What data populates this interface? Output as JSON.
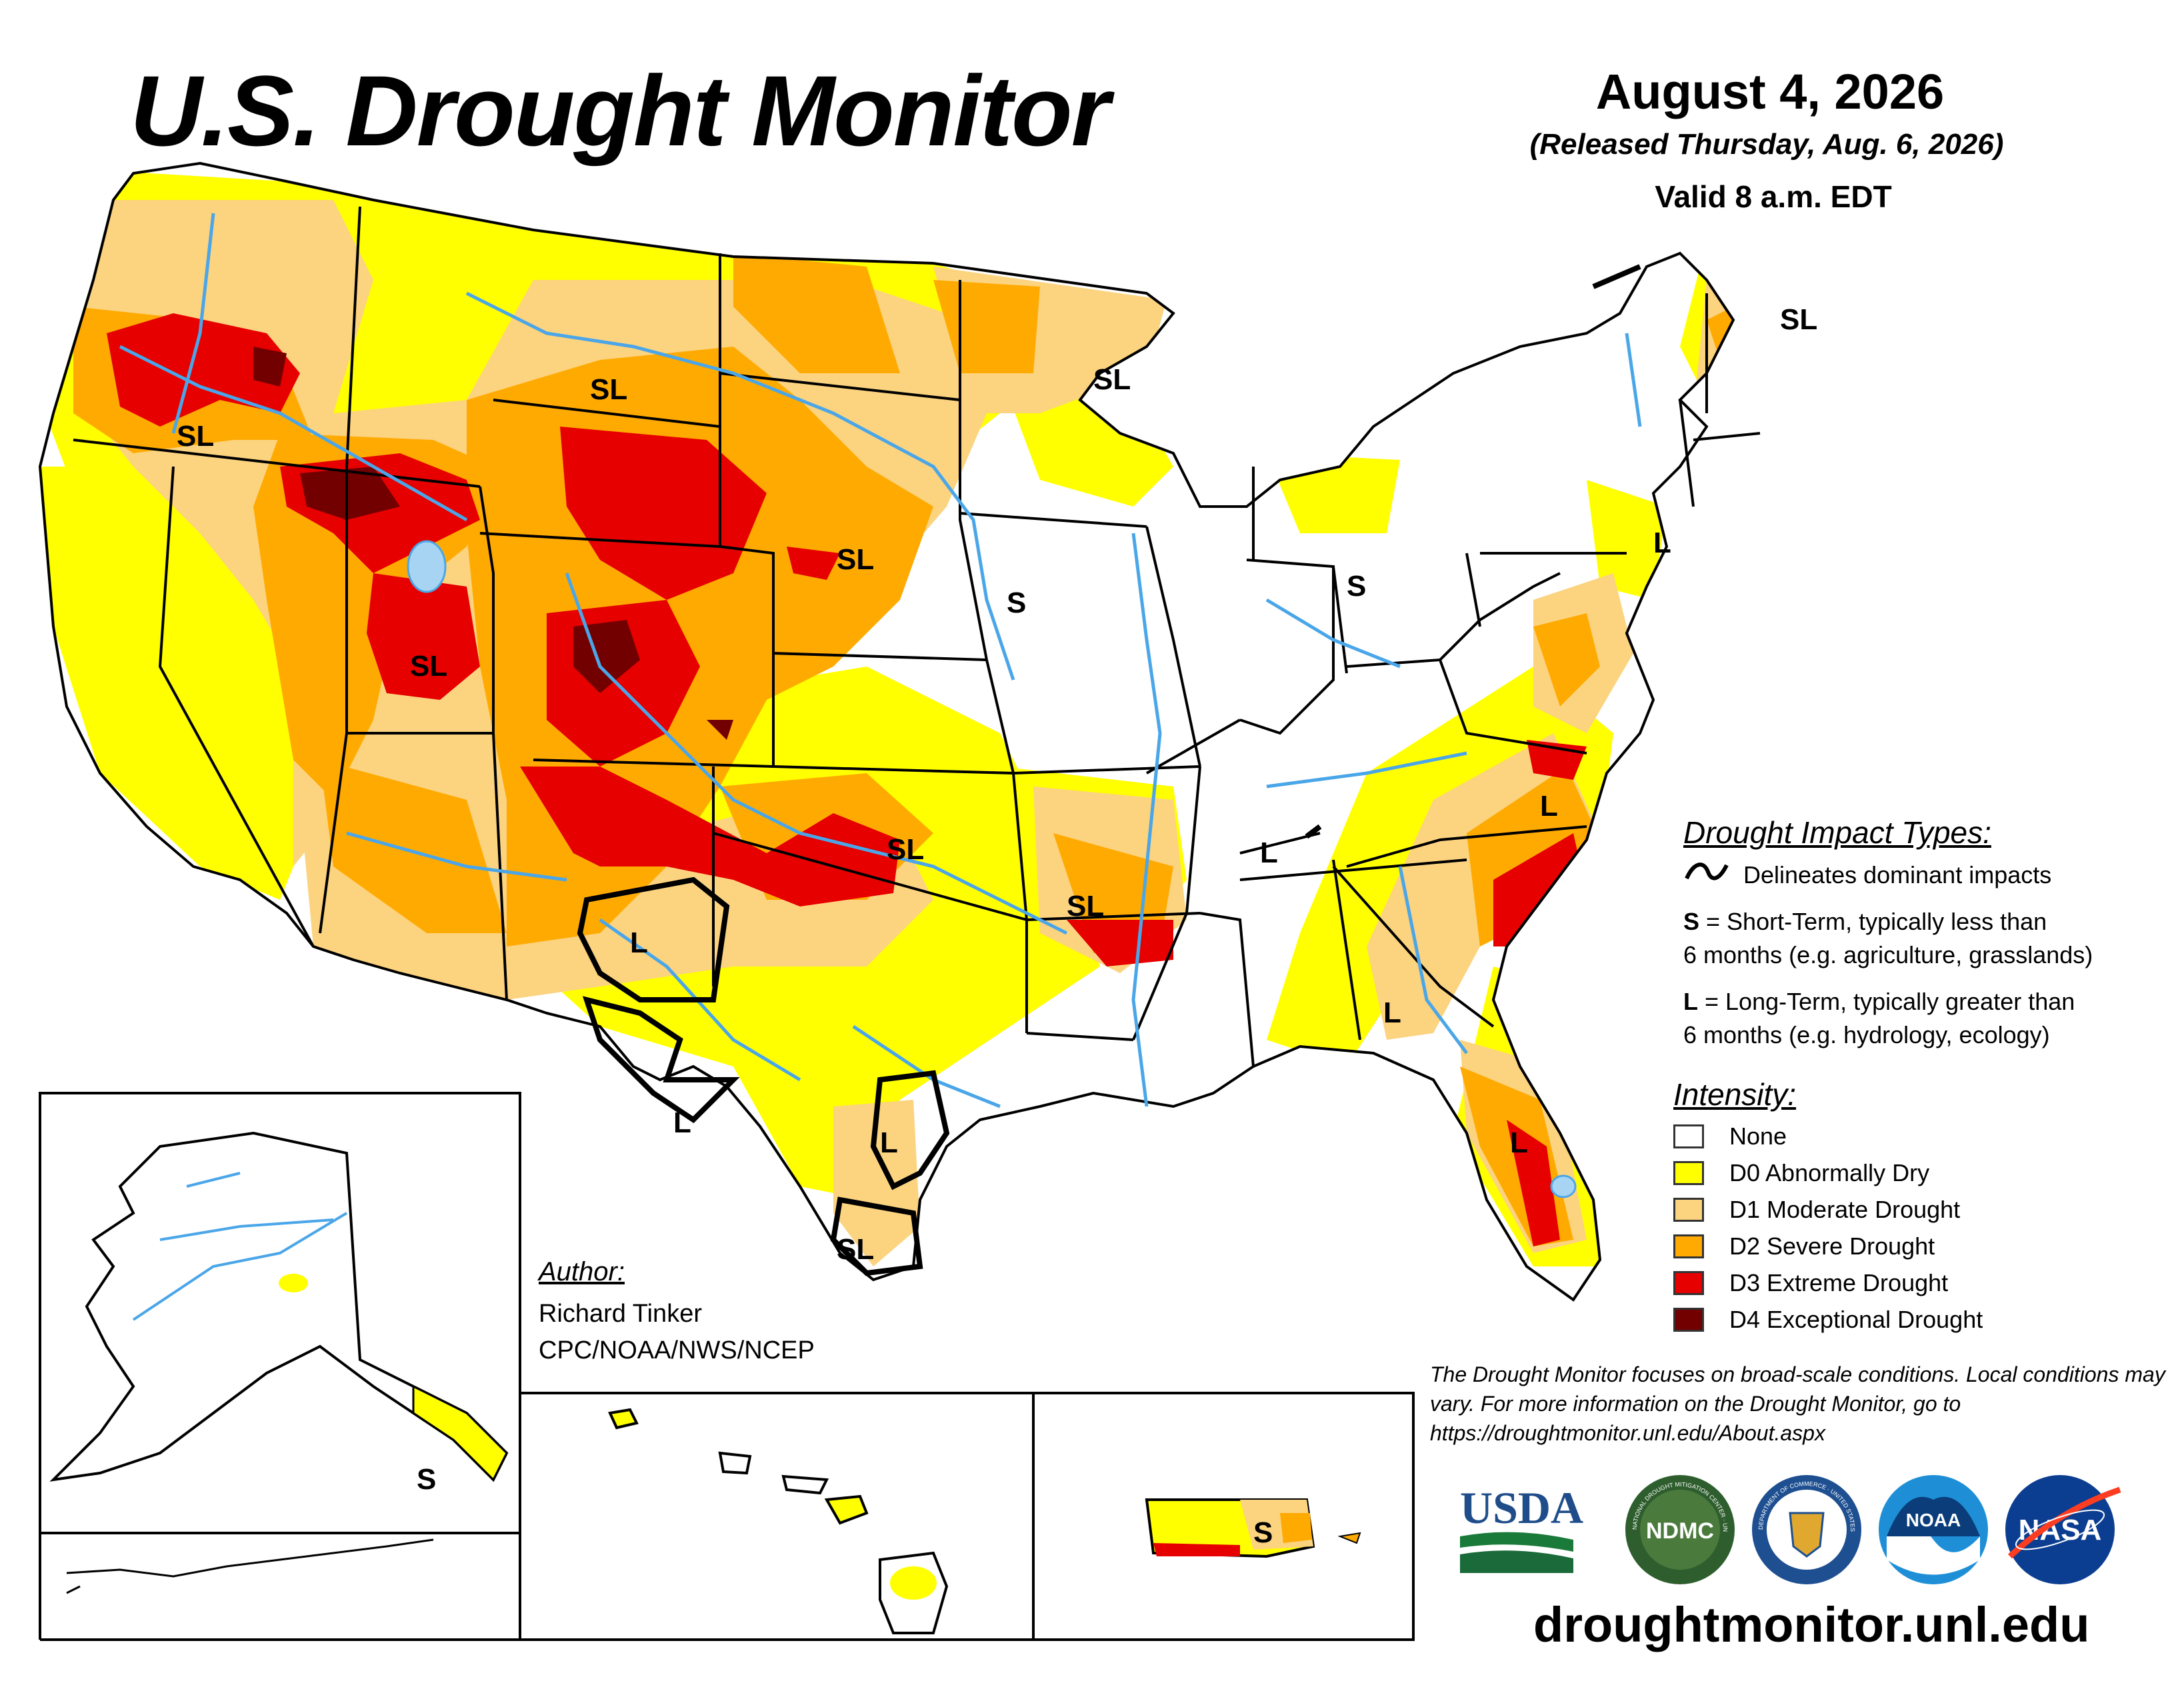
{
  "title": "U.S. Drought Monitor",
  "date": "August 4, 2026",
  "released": "(Released Thursday, Aug. 6, 2026)",
  "valid": "Valid 8 a.m. EDT",
  "impact_types": {
    "heading": "Drought Impact Types:",
    "delineates": "Delineates dominant impacts",
    "s_code": "S",
    "s_line1": " = Short-Term, typically less than",
    "s_line2": "6 months (e.g. agriculture, grasslands)",
    "l_code": "L",
    "l_line1": " = Long-Term, typically greater than",
    "l_line2": "6 months (e.g. hydrology, ecology)"
  },
  "intensity": {
    "heading": "Intensity:",
    "levels": [
      {
        "label": "None",
        "color": "#ffffff"
      },
      {
        "label": "D0 Abnormally Dry",
        "color": "#ffff00"
      },
      {
        "label": "D1 Moderate Drought",
        "color": "#fcd37f"
      },
      {
        "label": "D2 Severe Drought",
        "color": "#ffaa00"
      },
      {
        "label": "D3 Extreme Drought",
        "color": "#e60000"
      },
      {
        "label": "D4 Exceptional Drought",
        "color": "#730000"
      }
    ]
  },
  "author": {
    "heading": "Author:",
    "name": "Richard Tinker",
    "org": "CPC/NOAA/NWS/NCEP"
  },
  "note": "The Drought Monitor focuses on broad-scale conditions. Local conditions may vary. For more information on the Drought Monitor, go to https://droughtmonitor.unl.edu/About.aspx",
  "website": "droughtmonitor.unl.edu",
  "logos": {
    "usda": "USDA",
    "ndmc": "NDMC",
    "noaa": "NOAA",
    "nasa": "NASA",
    "ndmc_ring": "NATIONAL DROUGHT MITIGATION CENTER · UNIVERSITY OF NEBRASKA",
    "commerce_ring": "DEPARTMENT OF COMMERCE · UNITED STATES OF AMERICA"
  },
  "map_labels": [
    {
      "text": "SL",
      "region": "Oregon"
    },
    {
      "text": "SL",
      "region": "Montana"
    },
    {
      "text": "SL",
      "region": "Wisconsin/Minnesota"
    },
    {
      "text": "SL",
      "region": "Maine"
    },
    {
      "text": "SL",
      "region": "Nebraska"
    },
    {
      "text": "S",
      "region": "Iowa/Nebraska"
    },
    {
      "text": "S",
      "region": "Ohio"
    },
    {
      "text": "L",
      "region": "New Jersey"
    },
    {
      "text": "SL",
      "region": "Utah"
    },
    {
      "text": "SL",
      "region": "Oklahoma"
    },
    {
      "text": "SL",
      "region": "Arkansas"
    },
    {
      "text": "L",
      "region": "Tennessee"
    },
    {
      "text": "L",
      "region": "North Carolina"
    },
    {
      "text": "L",
      "region": "New Mexico"
    },
    {
      "text": "L",
      "region": "Alabama"
    },
    {
      "text": "L",
      "region": "Florida"
    },
    {
      "text": "L",
      "region": "Texas Big Bend"
    },
    {
      "text": "L",
      "region": "South Texas"
    },
    {
      "text": "SL",
      "region": "Texas Gulf Coast"
    },
    {
      "text": "S",
      "region": "Alaska"
    },
    {
      "text": "S",
      "region": "Puerto Rico"
    }
  ]
}
